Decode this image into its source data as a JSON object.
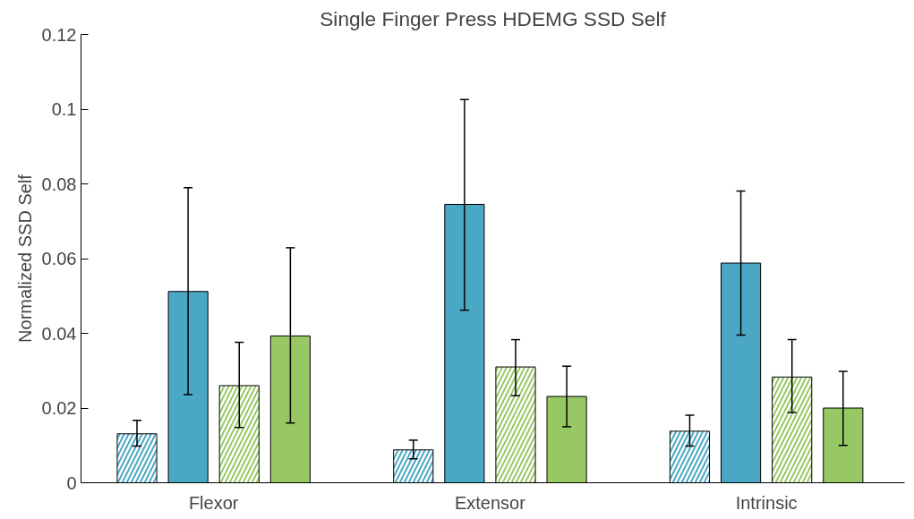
{
  "chart_data": {
    "type": "bar",
    "title": "Single Finger Press HDEMG SSD Self",
    "ylabel": "Normalized SSD Self",
    "categories": [
      "Flexor",
      "Extensor",
      "Intrinsic"
    ],
    "series": [
      {
        "color": "#4aa8c4",
        "values": [
          0.0131,
          0.0088,
          0.0138
        ],
        "errors": [
          [
            0.0098,
            0.0167
          ],
          [
            0.0064,
            0.0114
          ],
          [
            0.0098,
            0.0181
          ]
        ]
      },
      {
        "color": "#4aa8c4",
        "values": [
          0.0512,
          0.0745,
          0.0588
        ],
        "errors": [
          [
            0.0236,
            0.079
          ],
          [
            0.0462,
            0.1026
          ],
          [
            0.0395,
            0.0781
          ]
        ]
      },
      {
        "color": "#98c864",
        "values": [
          0.026,
          0.031,
          0.0283
        ],
        "errors": [
          [
            0.0148,
            0.0376
          ],
          [
            0.0233,
            0.0383
          ],
          [
            0.0188,
            0.0383
          ]
        ]
      },
      {
        "color": "#98c864",
        "values": [
          0.0393,
          0.0231,
          0.02
        ],
        "errors": [
          [
            0.016,
            0.0629
          ],
          [
            0.015,
            0.0312
          ],
          [
            0.01,
            0.0298
          ]
        ]
      }
    ],
    "ylim": [
      0,
      0.12
    ],
    "yticks": [
      0,
      0.02,
      0.04,
      0.06,
      0.08,
      {
        "value": 0.1,
        "label": "0.1"
      },
      0.12
    ],
    "grid": false
  }
}
